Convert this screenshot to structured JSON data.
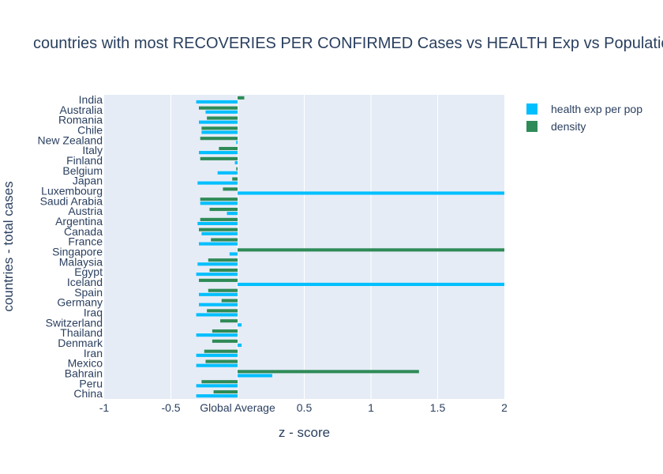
{
  "chart_data": {
    "type": "bar",
    "orientation": "horizontal",
    "title": "countries with most RECOVERIES PER CONFIRMED Cases vs HEALTH Exp vs Population DENSITY",
    "xlabel": "z - score",
    "ylabel": "countries - total cases",
    "xlim": [
      -1,
      2
    ],
    "x_tick_labels": [
      "-1",
      "-0.5",
      "Global Average",
      "0.5",
      "1",
      "1.5",
      "2"
    ],
    "x_tick_values": [
      -1,
      -0.5,
      0,
      0.5,
      1,
      1.5,
      2
    ],
    "grid": true,
    "legend_position": "top-right",
    "categories": [
      "India",
      "Australia",
      "Romania",
      "Chile",
      "New Zealand",
      "Italy",
      "Finland",
      "Belgium",
      "Japan",
      "Luxembourg",
      "Saudi Arabia",
      "Austria",
      "Argentina",
      "Canada",
      "France",
      "Singapore",
      "Malaysia",
      "Egypt",
      "Iceland",
      "Spain",
      "Germany",
      "Iraq",
      "Switzerland",
      "Thailand",
      "Denmark",
      "Iran",
      "Mexico",
      "Bahrain",
      "Peru",
      "China"
    ],
    "series": [
      {
        "name": "health exp per pop",
        "color": "#00bfff",
        "values": [
          -0.31,
          -0.24,
          -0.29,
          -0.27,
          -0.01,
          -0.29,
          -0.02,
          -0.15,
          -0.3,
          2.0,
          -0.28,
          -0.08,
          -0.3,
          -0.27,
          -0.29,
          -0.06,
          -0.3,
          -0.31,
          2.0,
          -0.29,
          -0.29,
          -0.31,
          0.03,
          -0.31,
          0.03,
          -0.31,
          -0.31,
          0.26,
          -0.31,
          -0.31
        ]
      },
      {
        "name": "density",
        "color": "#2e8b57",
        "values": [
          0.05,
          -0.29,
          -0.23,
          -0.27,
          -0.28,
          -0.14,
          -0.28,
          -0.01,
          -0.04,
          -0.11,
          -0.28,
          -0.21,
          -0.28,
          -0.29,
          -0.2,
          2.0,
          -0.22,
          -0.21,
          -0.29,
          -0.22,
          -0.12,
          -0.23,
          -0.13,
          -0.19,
          -0.19,
          -0.25,
          -0.24,
          1.36,
          -0.27,
          -0.18
        ]
      }
    ]
  }
}
